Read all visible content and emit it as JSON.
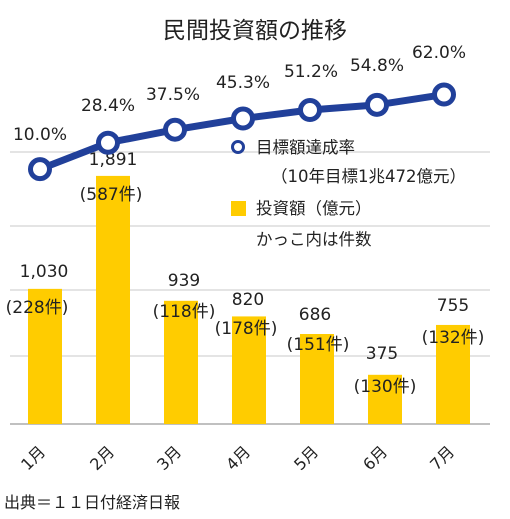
{
  "chart_data": {
    "type": "bar",
    "title": "民間投資額の推移",
    "categories": [
      "1月",
      "2月",
      "3月",
      "4月",
      "5月",
      "6月",
      "7月"
    ],
    "series": [
      {
        "name": "投資額（億元）",
        "kind": "bar",
        "values": [
          1030,
          1891,
          939,
          820,
          686,
          375,
          755
        ],
        "value_labels": [
          "1,030",
          "1,891",
          "939",
          "820",
          "686",
          "375",
          "755"
        ],
        "count_labels": [
          "(228件)",
          "(587件)",
          "(118件)",
          "(178件)",
          "(151件)",
          "(130件)",
          "(132件)"
        ],
        "color": "#FFCC00"
      },
      {
        "name": "目標額達成率",
        "kind": "line",
        "values": [
          10.0,
          28.4,
          37.5,
          45.3,
          51.2,
          54.8,
          62.0
        ],
        "value_labels": [
          "10.0%",
          "28.4%",
          "37.5%",
          "45.3%",
          "51.2%",
          "54.8%",
          "62.0%"
        ],
        "color": "#21409A"
      }
    ],
    "ylim_bar": [
      0,
      2000
    ],
    "ylim_line": [
      0,
      70
    ],
    "grid": true,
    "legend": {
      "line_label": "目標額達成率",
      "line_note": "（10年目標1兆472億元）",
      "bar_label": "投資額（億元）",
      "bar_note": "かっこ内は件数",
      "placement": "top-right"
    },
    "source": "出典＝１１日付経済日報"
  }
}
